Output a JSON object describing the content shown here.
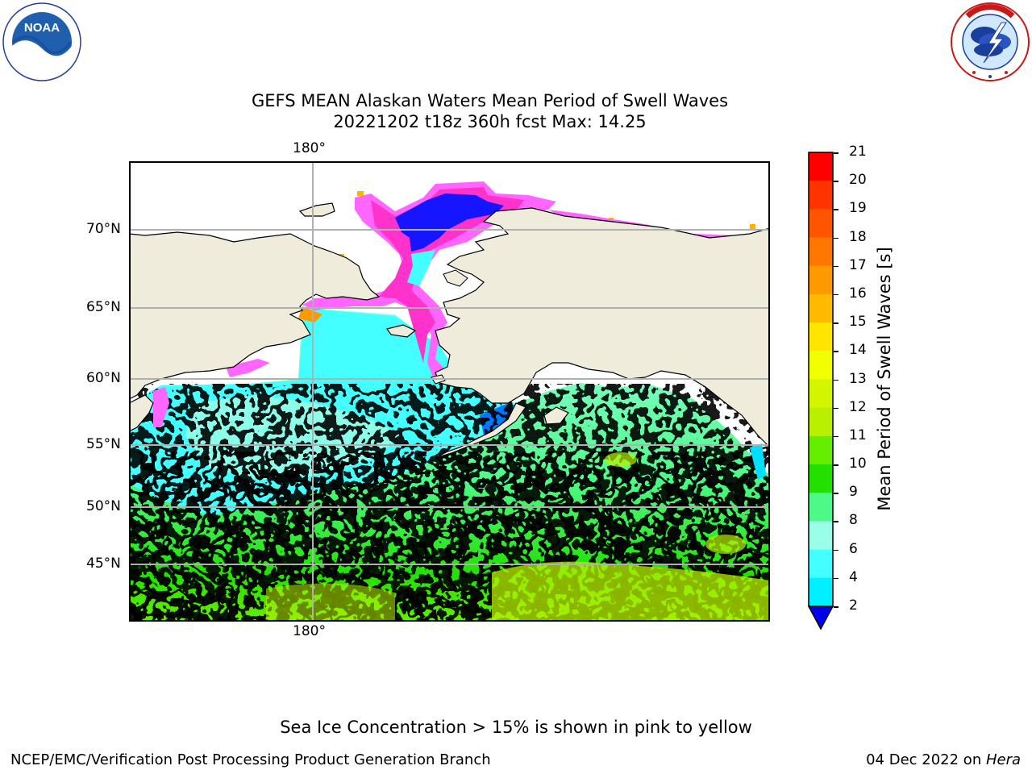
{
  "header": {
    "title_line1": "GEFS MEAN Alaskan Waters Mean Period of Swell Waves",
    "title_line2": "20221202 t18z 360h fcst   Max: 14.25",
    "left_logo": {
      "name": "NOAA",
      "ring_text": "NATIONAL OCEANIC AND ATMOSPHERIC ADMINISTRATION · U.S. DEPARTMENT OF COMMERCE"
    },
    "right_logo": {
      "ring_text": "NATIONAL WEATHER SERVICE"
    }
  },
  "map": {
    "top_lon_label": "180°",
    "bottom_lon_label": "180°",
    "lat_labels": [
      "70°N",
      "65°N",
      "60°N",
      "55°N",
      "50°N",
      "45°N"
    ],
    "colors": {
      "land": "#efecdc",
      "grid": "#b0b0b0",
      "ice_pink": "#ff66ff",
      "ice_magenta": "#ff33cc",
      "ice_blue": "#1515ff",
      "ice_orange": "#ffb300"
    }
  },
  "colorbar": {
    "label": "Mean Period of Swell Waves [s]",
    "ticks": [
      "21",
      "20",
      "19",
      "18",
      "17",
      "16",
      "15",
      "14",
      "13",
      "12",
      "11",
      "10",
      "9",
      "8",
      "6",
      "4",
      "2"
    ],
    "colors_top_to_bottom": [
      "#ff0000",
      "#ff3300",
      "#ff5500",
      "#ff7700",
      "#ff9900",
      "#ffbb00",
      "#ffe600",
      "#f2ff00",
      "#d4f500",
      "#b8f000",
      "#66ee00",
      "#22e000",
      "#4dfa88",
      "#99ffe8",
      "#44ffff",
      "#00f0ff",
      "#00dfff",
      "#0077ff",
      "#0000ee"
    ],
    "extend_color": "#0000ee"
  },
  "footer": {
    "note": "Sea Ice Concentration > 15% is shown in pink to yellow",
    "credit": "NCEP/EMC/Verification Post Processing Product Generation Branch",
    "date": "04 Dec 2022 on ",
    "machine": "Hera"
  }
}
